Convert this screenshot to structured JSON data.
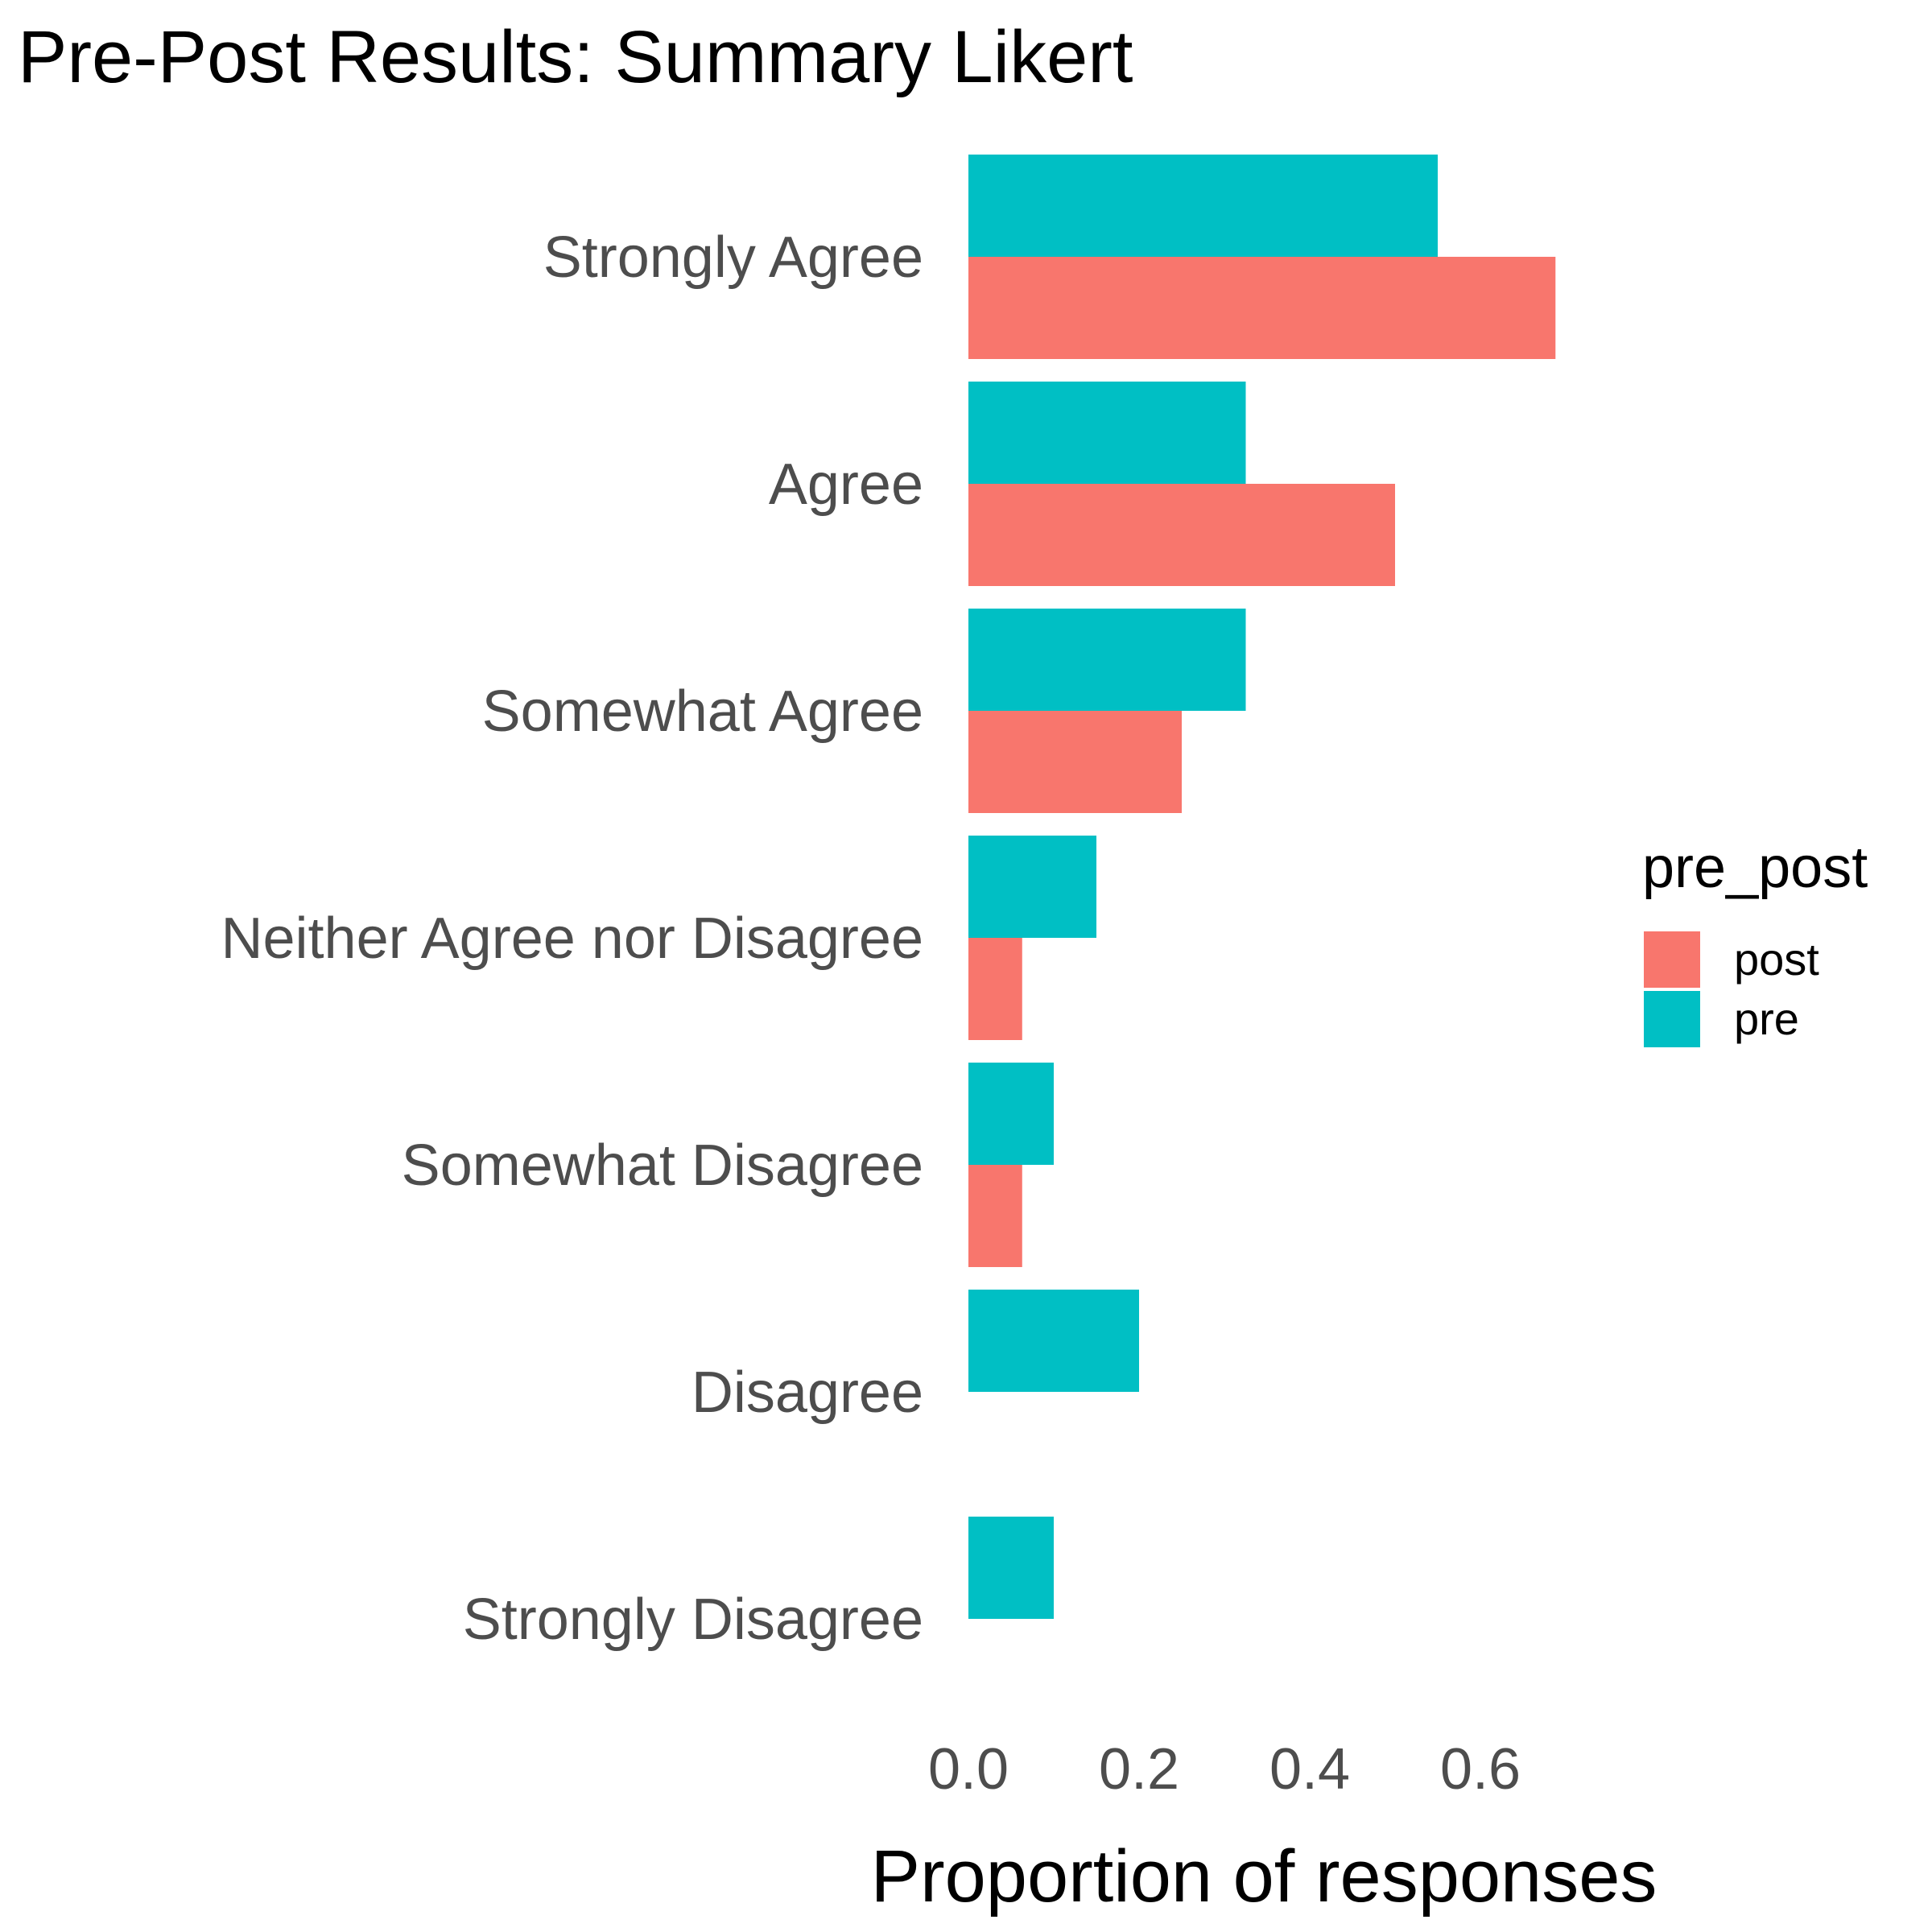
{
  "chart_data": {
    "type": "bar",
    "orientation": "horizontal",
    "title": "Pre-Post Results: Summary Likert",
    "xlabel": "Proportion of responses",
    "ylabel": "",
    "categories": [
      "Strongly Agree",
      "Agree",
      "Somewhat Agree",
      "Neither Agree nor Disagree",
      "Somewhat Disagree",
      "Disagree",
      "Strongly Disagree"
    ],
    "series": [
      {
        "name": "pre",
        "color": "#00BFC4",
        "values": [
          0.55,
          0.325,
          0.325,
          0.15,
          0.1,
          0.2,
          0.1
        ]
      },
      {
        "name": "post",
        "color": "#F8766D",
        "values": [
          0.688,
          0.5,
          0.25,
          0.063,
          0.063,
          0,
          0
        ]
      }
    ],
    "xlim": [
      0,
      0.72
    ],
    "xticks": [
      0.0,
      0.2,
      0.4,
      0.6
    ],
    "xtick_labels": [
      "0.0",
      "0.2",
      "0.4",
      "0.6"
    ],
    "legend": {
      "title": "pre_post",
      "placement": "right",
      "entries": [
        {
          "label": "post",
          "color": "#F8766D"
        },
        {
          "label": "pre",
          "color": "#00BFC4"
        }
      ]
    },
    "grid": false
  }
}
